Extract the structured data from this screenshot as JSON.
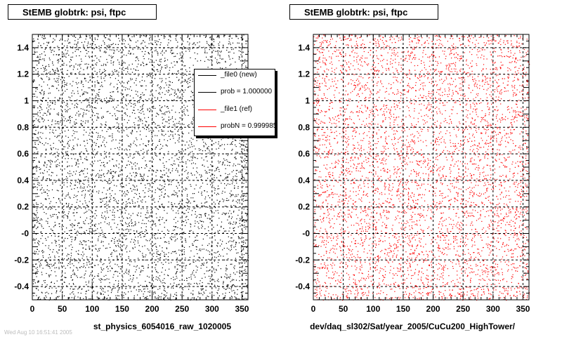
{
  "left_panel": {
    "title": "StEMB globtrk: psi, ftpc",
    "xlabel": "st_physics_6054016_raw_1020005",
    "legend": [
      {
        "label": "_file0 (new)",
        "color": "#000000"
      },
      {
        "label": "prob = 1.000000",
        "color": "#000000"
      },
      {
        "label": "_file1 (ref)",
        "color": "#ff0000"
      },
      {
        "label": "probN = 0.999985",
        "color": "#ff0000"
      }
    ]
  },
  "right_panel": {
    "title": "StEMB globtrk: psi, ftpc",
    "xlabel": "dev/daq_sl302/Sat/year_2005/CuCu200_HighTower/"
  },
  "footer_stamp": "Wed Aug 10 16:51:41 2005",
  "chart_data": [
    {
      "type": "scatter",
      "title": "StEMB globtrk: psi, ftpc",
      "xlabel": "st_physics_6054016_raw_1020005",
      "ylabel": "",
      "xlim": [
        0,
        360
      ],
      "ylim": [
        -0.5,
        1.5
      ],
      "x_ticks": [
        0,
        50,
        100,
        150,
        200,
        250,
        300,
        350
      ],
      "y_ticks": [
        "-0.4",
        "-0.2",
        "-0",
        "0.2",
        "0.4",
        "0.6",
        "0.8",
        "1",
        "1.2",
        "1.4"
      ],
      "y_tick_values": [
        -0.4,
        -0.2,
        0,
        0.2,
        0.4,
        0.6,
        0.8,
        1.0,
        1.2,
        1.4
      ],
      "grid": true,
      "point_color": "#000000",
      "legend_position": "top-right",
      "series": [
        {
          "name": "_file0 (new)",
          "color": "#000000"
        },
        {
          "name": "_file1 (ref)",
          "color": "#ff0000"
        }
      ]
    },
    {
      "type": "scatter",
      "title": "StEMB globtrk: psi, ftpc",
      "xlabel": "dev/daq_sl302/Sat/year_2005/CuCu200_HighTower/",
      "ylabel": "",
      "xlim": [
        0,
        360
      ],
      "ylim": [
        -0.5,
        1.5
      ],
      "x_ticks": [
        0,
        50,
        100,
        150,
        200,
        250,
        300,
        350
      ],
      "y_ticks": [
        "-0.4",
        "-0.2",
        "-0",
        "0.2",
        "0.4",
        "0.6",
        "0.8",
        "1",
        "1.2",
        "1.4"
      ],
      "y_tick_values": [
        -0.4,
        -0.2,
        0,
        0.2,
        0.4,
        0.6,
        0.8,
        1.0,
        1.2,
        1.4
      ],
      "grid": true,
      "point_color": "#ff0000"
    }
  ]
}
